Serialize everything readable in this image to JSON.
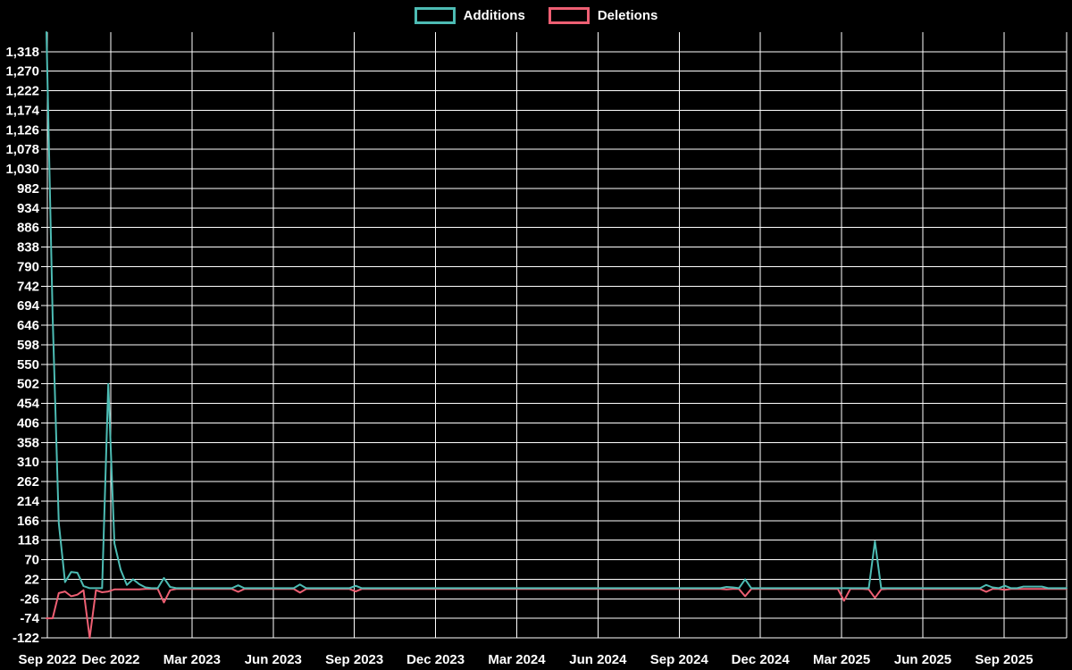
{
  "legend": {
    "items": [
      {
        "label": "Additions"
      },
      {
        "label": "Deletions"
      }
    ]
  },
  "colors": {
    "background": "#000000",
    "grid": "#ffffff",
    "text": "#ffffff",
    "additions": "#4dbcb4",
    "deletions": "#ee5f73"
  },
  "chart_data": {
    "type": "line",
    "title": "",
    "point_interval": "weekly",
    "x_axis": {
      "tick_labels": [
        "Sep 2022",
        "Dec 2022",
        "Mar 2023",
        "Jun 2023",
        "Sep 2023",
        "Dec 2023",
        "Mar 2024",
        "Jun 2024",
        "Sep 2024",
        "Dec 2024",
        "Mar 2025",
        "Jun 2025",
        "Sep 2025"
      ]
    },
    "y_axis": {
      "min": -122,
      "max": 1366,
      "tick_step": 48,
      "tick_labels": [
        "1,318",
        "1,270",
        "1,222",
        "1,174",
        "1,126",
        "1,078",
        "1,030",
        "982",
        "934",
        "886",
        "838",
        "790",
        "742",
        "694",
        "646",
        "598",
        "550",
        "502",
        "454",
        "406",
        "358",
        "310",
        "262",
        "214",
        "166",
        "118",
        "70",
        "22",
        "-26",
        "-74",
        "-122"
      ],
      "tick_values": [
        1318,
        1270,
        1222,
        1174,
        1126,
        1078,
        1030,
        982,
        934,
        886,
        838,
        790,
        742,
        694,
        646,
        598,
        550,
        502,
        454,
        406,
        358,
        310,
        262,
        214,
        166,
        118,
        70,
        22,
        -26,
        -74,
        -122
      ]
    },
    "grid": true,
    "legend_position": "top-center",
    "series": [
      {
        "name": "Additions",
        "color": "#4dbcb4",
        "values": [
          1366,
          670,
          160,
          15,
          40,
          38,
          5,
          0,
          0,
          0,
          502,
          110,
          45,
          8,
          22,
          10,
          2,
          0,
          0,
          25,
          3,
          0,
          0,
          0,
          0,
          0,
          0,
          0,
          0,
          0,
          0,
          7,
          0,
          0,
          0,
          0,
          0,
          0,
          0,
          0,
          0,
          9,
          0,
          0,
          0,
          0,
          0,
          0,
          0,
          0,
          6,
          0,
          0,
          0,
          0,
          0,
          0,
          0,
          0,
          0,
          0,
          0,
          0,
          0,
          0,
          0,
          0,
          0,
          0,
          0,
          0,
          0,
          0,
          0,
          0,
          0,
          0,
          0,
          0,
          0,
          0,
          0,
          0,
          0,
          0,
          0,
          0,
          0,
          0,
          0,
          0,
          0,
          0,
          0,
          0,
          0,
          0,
          0,
          0,
          0,
          0,
          0,
          0,
          0,
          0,
          0,
          0,
          0,
          0,
          0,
          3,
          2,
          0,
          22,
          0,
          0,
          0,
          0,
          0,
          0,
          0,
          0,
          0,
          0,
          0,
          0,
          0,
          0,
          0,
          0,
          0,
          0,
          0,
          0,
          115,
          0,
          0,
          0,
          0,
          0,
          0,
          0,
          0,
          0,
          0,
          0,
          0,
          0,
          0,
          0,
          0,
          0,
          8,
          2,
          0,
          6,
          0,
          0,
          4,
          4,
          4,
          4,
          0,
          0,
          0,
          0
        ]
      },
      {
        "name": "Deletions",
        "color": "#ee5f73",
        "values": [
          -74,
          -74,
          -12,
          -8,
          -20,
          -16,
          -5,
          -122,
          -5,
          -10,
          -8,
          -3,
          -3,
          -3,
          -3,
          -3,
          -2,
          -2,
          -2,
          -35,
          -5,
          -2,
          -2,
          -2,
          -2,
          -2,
          -2,
          -2,
          -2,
          -2,
          -2,
          -9,
          -2,
          -2,
          -2,
          -2,
          -2,
          -2,
          -2,
          -2,
          -2,
          -11,
          -2,
          -2,
          -2,
          -2,
          -2,
          -2,
          -2,
          -2,
          -8,
          -2,
          -2,
          -2,
          -2,
          -2,
          -2,
          -2,
          -2,
          -2,
          -2,
          -2,
          -2,
          -2,
          -2,
          -2,
          -2,
          -2,
          -2,
          -2,
          -2,
          -2,
          -2,
          -2,
          -2,
          -2,
          -2,
          -2,
          -2,
          -2,
          -2,
          -2,
          -2,
          -2,
          -2,
          -2,
          -2,
          -2,
          -2,
          -2,
          -2,
          -2,
          -2,
          -2,
          -2,
          -2,
          -2,
          -2,
          -2,
          -2,
          -2,
          -2,
          -2,
          -2,
          -2,
          -2,
          -2,
          -2,
          -2,
          -2,
          -3,
          -2,
          -2,
          -20,
          -2,
          -2,
          -2,
          -2,
          -2,
          -2,
          -2,
          -2,
          -2,
          -2,
          -2,
          -2,
          -2,
          -2,
          -2,
          -31,
          -2,
          -2,
          -2,
          -3,
          -24,
          -3,
          -2,
          -2,
          -2,
          -2,
          -2,
          -2,
          -2,
          -2,
          -2,
          -2,
          -2,
          -2,
          -2,
          -2,
          -2,
          -2,
          -9,
          -2,
          -2,
          -4,
          -2,
          -2,
          -2,
          -2,
          -2,
          -2,
          -2,
          -2,
          -2,
          -2
        ]
      }
    ]
  }
}
